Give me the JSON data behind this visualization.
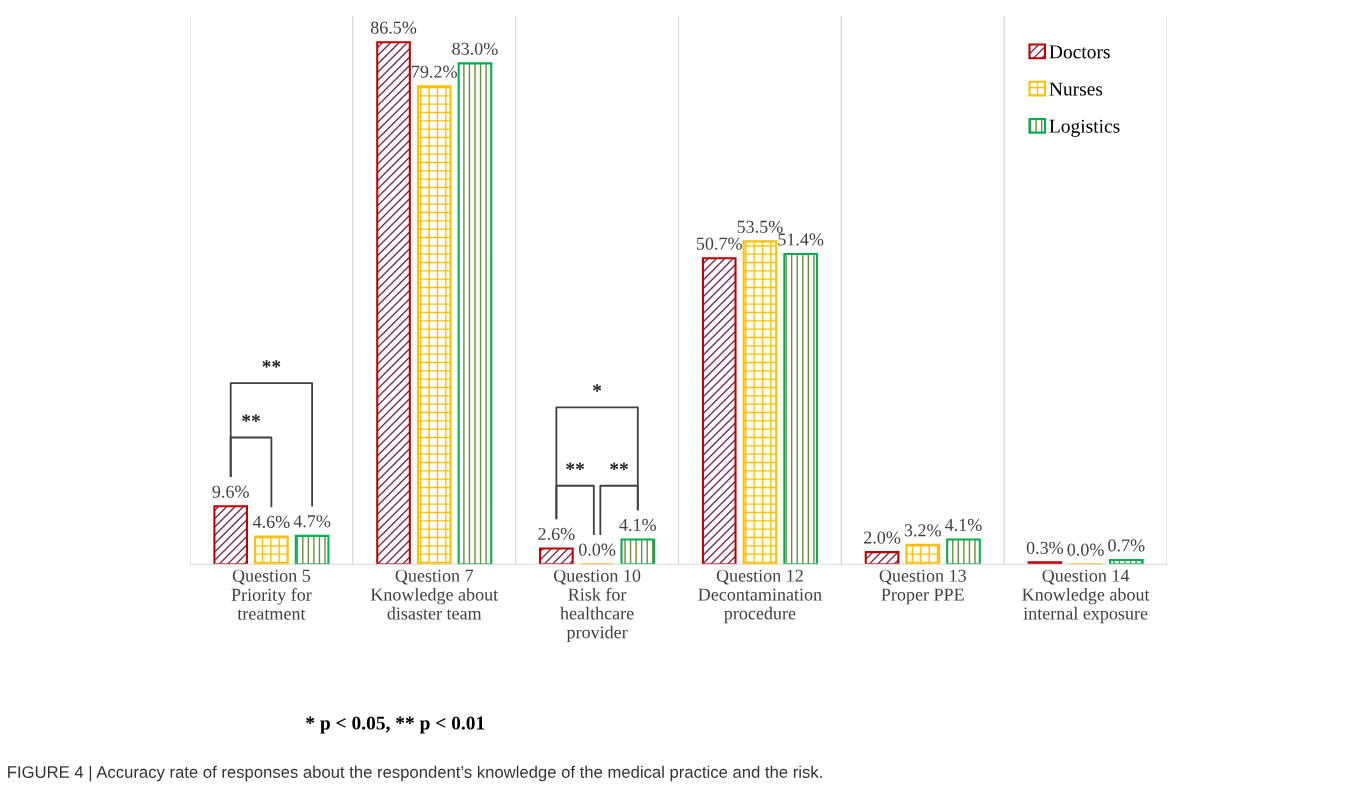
{
  "chart_data": {
    "type": "bar",
    "categories": [
      "Question 5\nPriority for\ntreatment",
      "Question 7\nKnowledge about\ndisaster team",
      "Question 10\nRisk for\nhealthcare\nprovider",
      "Question 12\nDecontamination\nprocedure",
      "Question 13\nProper PPE",
      "Question 14\nKnowledge about\ninternal exposure"
    ],
    "series": [
      {
        "name": "Doctors",
        "color": "#c00000",
        "values": [
          9.6,
          86.5,
          2.6,
          50.7,
          2.0,
          0.3
        ],
        "value_labels": [
          "9.6%",
          "86.5%",
          "2.6%",
          "50.7%",
          "2.0%",
          "0.3%"
        ]
      },
      {
        "name": "Nurses",
        "color": "#ffc000",
        "values": [
          4.6,
          79.2,
          0.0,
          53.5,
          3.2,
          0.0
        ],
        "value_labels": [
          "4.6%",
          "79.2%",
          "0.0%",
          "53.5%",
          "3.2%",
          "0.0%"
        ]
      },
      {
        "name": "Logistics",
        "color": "#00b050",
        "values": [
          4.7,
          83.0,
          4.1,
          51.4,
          4.1,
          0.7
        ],
        "value_labels": [
          "4.7%",
          "83.0%",
          "4.1%",
          "51.4%",
          "4.1%",
          "0.7%"
        ]
      }
    ],
    "legend": "top right",
    "grid": "x",
    "annotations": [
      "**",
      "**",
      "*",
      "**",
      "**",
      "* p < 0.05, ** p < 0.01",
      "FIGURE 4 | Accuracy rate of responses about the respondent’s knowledge of the medical practice and the risk."
    ]
  }
}
